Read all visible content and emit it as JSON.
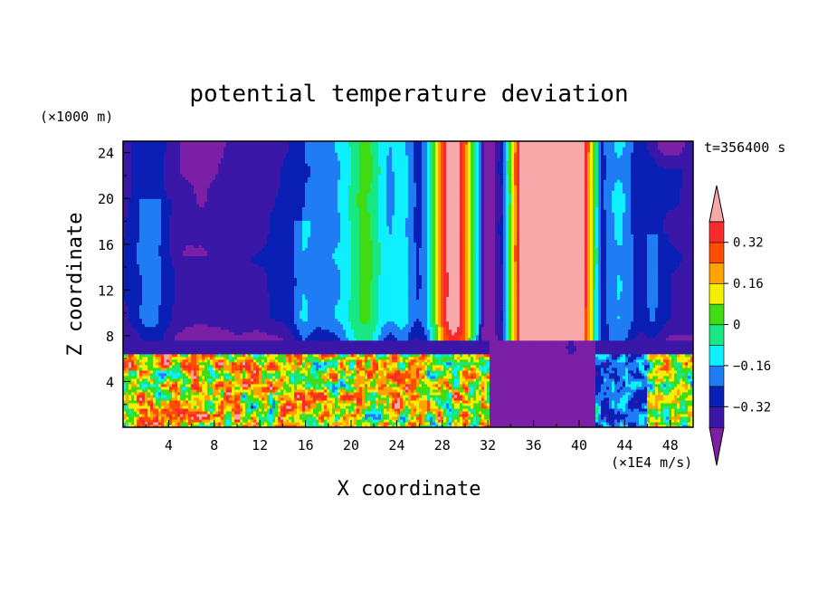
{
  "chart_data": {
    "type": "heatmap",
    "title": "potential temperature deviation",
    "xlabel": "X coordinate",
    "ylabel": "Z coordinate",
    "x_unit": "(×1E4 m/s)",
    "y_unit": "(×1000 m)",
    "time_label": "t=356400 s",
    "xlim": [
      0,
      50
    ],
    "ylim": [
      0,
      25
    ],
    "x_ticks": [
      "4",
      "8",
      "12",
      "16",
      "20",
      "24",
      "28",
      "32",
      "36",
      "40",
      "44",
      "48"
    ],
    "y_ticks": [
      "4",
      "8",
      "12",
      "16",
      "20",
      "24"
    ],
    "colorbar": {
      "levels": [
        -0.4,
        -0.32,
        -0.24,
        -0.16,
        -0.08,
        0,
        0.08,
        0.16,
        0.24,
        0.32,
        0.4
      ],
      "tick_labels": [
        "0.32",
        "0.16",
        "0",
        "−0.16",
        "−0.32"
      ],
      "colors_bottom_to_top": [
        "#7b1fa6",
        "#3a17a6",
        "#0a1fb3",
        "#1f7cf5",
        "#0ff0ff",
        "#18e884",
        "#3fdc14",
        "#f2f000",
        "#ffa200",
        "#ff4d00",
        "#f52a2a",
        "#f8a8a8"
      ]
    },
    "note_regions": {
      "warm_columns_x": [
        [
          27,
          31
        ],
        [
          33,
          42
        ]
      ],
      "cool_background": "upper domain",
      "turbulent_layer_z": [
        0,
        7
      ]
    }
  }
}
